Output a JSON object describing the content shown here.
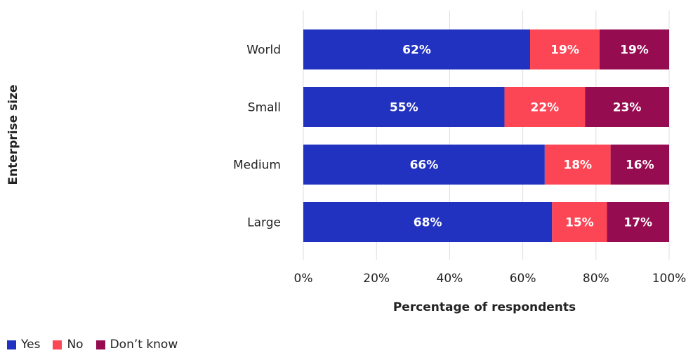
{
  "chart_data": {
    "type": "bar",
    "orientation": "horizontal",
    "stacked": true,
    "categories": [
      "World",
      "Small",
      "Medium",
      "Large"
    ],
    "series": [
      {
        "name": "Yes",
        "color": "#2131c0",
        "values": [
          62,
          55,
          66,
          68
        ]
      },
      {
        "name": "No",
        "color": "#fc4655",
        "values": [
          19,
          22,
          18,
          15
        ]
      },
      {
        "name": "Don’t know",
        "color": "#960c50",
        "values": [
          19,
          23,
          16,
          17
        ]
      }
    ],
    "data_labels": [
      [
        "62%",
        "55%",
        "66%",
        "68%"
      ],
      [
        "19%",
        "22%",
        "18%",
        "15%"
      ],
      [
        "19%",
        "23%",
        "16%",
        "17%"
      ]
    ],
    "xlabel": "Percentage of respondents",
    "ylabel": "Enterprise size",
    "xlim": [
      0,
      100
    ],
    "xticks": [
      "0%",
      "20%",
      "40%",
      "60%",
      "80%",
      "100%"
    ],
    "grid": true,
    "legend_position": "bottom-left"
  }
}
